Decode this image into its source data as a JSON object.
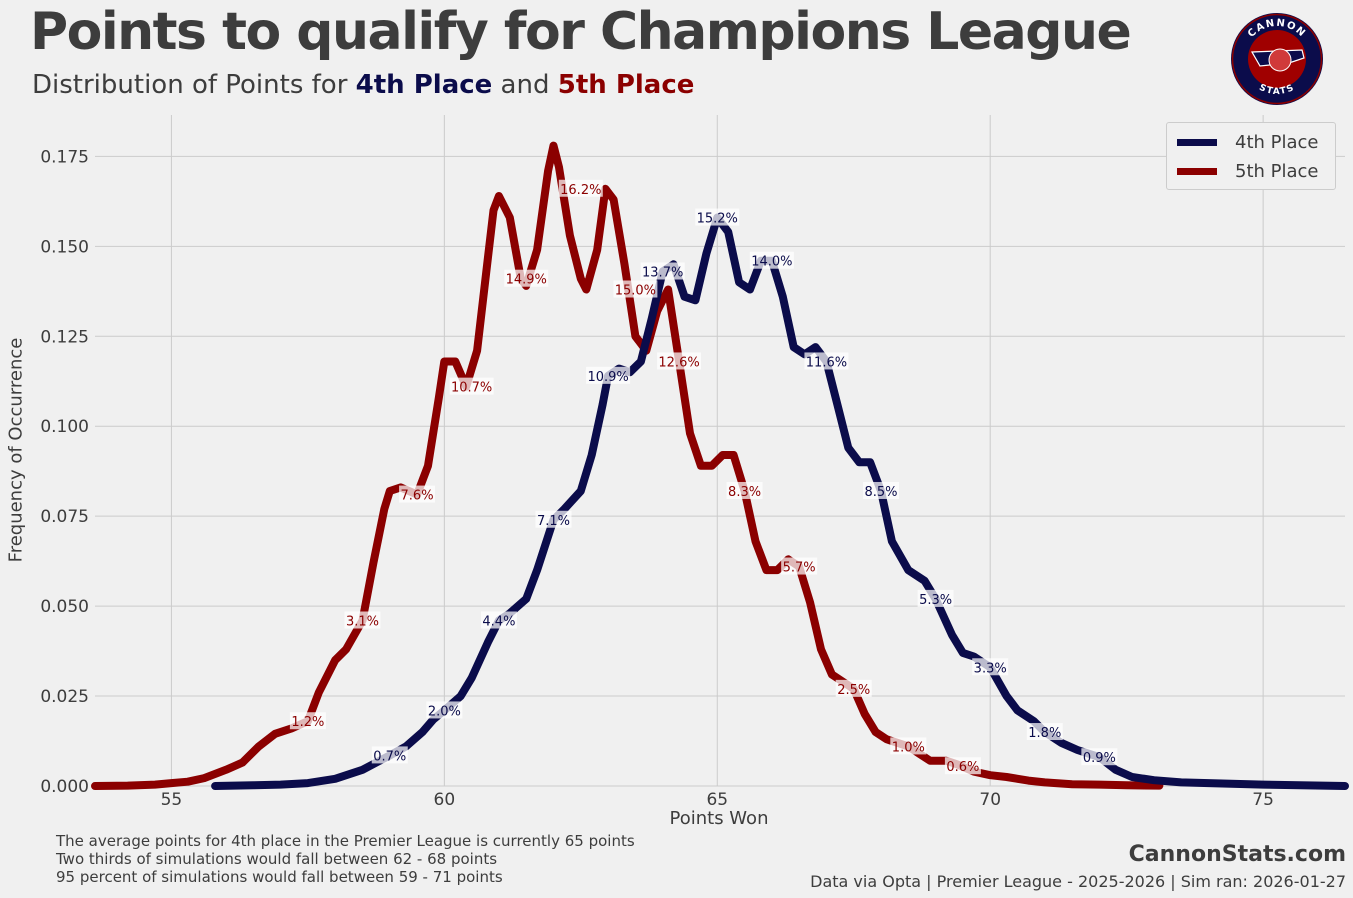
{
  "header": {
    "title": "Points to qualify for Champions League",
    "subtitle_prefix": "Distribution of Points for ",
    "subtitle_4th": "4th Place",
    "subtitle_and": " and ",
    "subtitle_5th": "5th Place"
  },
  "logo": {
    "top_text": "CANNON",
    "bottom_text": "STATS"
  },
  "colors": {
    "fourth": "#0b0c4b",
    "fifth": "#8b0000",
    "background": "#f0f0f0",
    "grid": "#cbcbcb",
    "text": "#3d3d3d"
  },
  "footer": {
    "notes": [
      "The average points for 4th place in the Premier League is currently 65 points",
      "Two thirds of simulations would fall between 62 - 68 points",
      "95 percent of simulations would fall between 59 - 71 points"
    ],
    "site": "CannonStats.com",
    "source": "Data via Opta | Premier League - 2025-2026 | Sim ran: 2026-01-27"
  },
  "chart_data": {
    "type": "line",
    "title": "Points to qualify for Champions League",
    "xlabel": "Points Won",
    "ylabel": "Frequency of Occurrence",
    "xlim": [
      53.6,
      76.5
    ],
    "ylim": [
      0,
      0.1865
    ],
    "xticks": [
      55,
      60,
      65,
      70,
      75
    ],
    "yticks": [
      0,
      0.025,
      0.05,
      0.075,
      0.1,
      0.125,
      0.15,
      0.175
    ],
    "ytick_labels": [
      "0.000",
      "0.025",
      "0.050",
      "0.075",
      "0.100",
      "0.125",
      "0.150",
      "0.175"
    ],
    "grid": true,
    "legend": {
      "position": "top-right",
      "entries": [
        "4th Place",
        "5th Place"
      ]
    },
    "series": [
      {
        "name": "4th Place",
        "color": "#0b0c4b",
        "x": [
          55.8,
          56.5,
          57.0,
          57.5,
          58.0,
          58.5,
          59.0,
          59.3,
          59.6,
          59.8,
          60.0,
          60.3,
          60.5,
          60.8,
          61.0,
          61.2,
          61.5,
          61.7,
          62.0,
          62.2,
          62.5,
          62.7,
          62.9,
          63.0,
          63.2,
          63.4,
          63.6,
          63.8,
          64.0,
          64.2,
          64.4,
          64.6,
          64.8,
          65.0,
          65.2,
          65.4,
          65.6,
          65.8,
          66.0,
          66.2,
          66.4,
          66.6,
          66.8,
          67.0,
          67.2,
          67.4,
          67.6,
          67.8,
          68.0,
          68.2,
          68.5,
          68.8,
          69.0,
          69.3,
          69.5,
          69.7,
          70.0,
          70.3,
          70.5,
          70.8,
          71.0,
          71.3,
          71.6,
          72.0,
          72.3,
          72.6,
          73.0,
          73.5,
          74.0,
          75.0,
          76.5
        ],
        "y": [
          0.0,
          0.0002,
          0.0004,
          0.0008,
          0.002,
          0.0045,
          0.0085,
          0.011,
          0.015,
          0.0185,
          0.021,
          0.025,
          0.03,
          0.04,
          0.046,
          0.048,
          0.052,
          0.06,
          0.074,
          0.077,
          0.082,
          0.092,
          0.106,
          0.114,
          0.116,
          0.115,
          0.118,
          0.13,
          0.143,
          0.145,
          0.136,
          0.135,
          0.148,
          0.158,
          0.154,
          0.14,
          0.138,
          0.146,
          0.146,
          0.136,
          0.122,
          0.12,
          0.122,
          0.118,
          0.106,
          0.094,
          0.09,
          0.09,
          0.082,
          0.068,
          0.06,
          0.057,
          0.052,
          0.042,
          0.037,
          0.036,
          0.033,
          0.025,
          0.021,
          0.018,
          0.015,
          0.012,
          0.01,
          0.008,
          0.0045,
          0.0025,
          0.0016,
          0.001,
          0.0008,
          0.0004,
          0.0
        ]
      },
      {
        "name": "5th Place",
        "color": "#8b0000",
        "x": [
          53.6,
          54.2,
          54.7,
          55.0,
          55.3,
          55.6,
          56.0,
          56.3,
          56.6,
          56.9,
          57.2,
          57.5,
          57.7,
          58.0,
          58.2,
          58.5,
          58.7,
          58.9,
          59.0,
          59.2,
          59.5,
          59.7,
          59.9,
          60.0,
          60.2,
          60.4,
          60.6,
          60.8,
          60.9,
          61.0,
          61.2,
          61.4,
          61.5,
          61.7,
          61.9,
          62.0,
          62.1,
          62.3,
          62.5,
          62.6,
          62.8,
          62.95,
          63.1,
          63.3,
          63.5,
          63.7,
          63.9,
          64.1,
          64.3,
          64.5,
          64.7,
          64.9,
          65.1,
          65.3,
          65.5,
          65.7,
          65.9,
          66.1,
          66.3,
          66.5,
          66.7,
          66.9,
          67.1,
          67.3,
          67.5,
          67.7,
          67.9,
          68.1,
          68.3,
          68.5,
          68.7,
          68.9,
          69.2,
          69.4,
          69.7,
          70.0,
          70.3,
          70.7,
          71.0,
          71.5,
          72.0,
          72.5,
          73.1
        ],
        "y": [
          0.0,
          0.0001,
          0.0004,
          0.0008,
          0.0012,
          0.0022,
          0.0045,
          0.0065,
          0.011,
          0.0145,
          0.016,
          0.018,
          0.026,
          0.035,
          0.038,
          0.046,
          0.062,
          0.077,
          0.082,
          0.083,
          0.081,
          0.089,
          0.108,
          0.118,
          0.118,
          0.111,
          0.121,
          0.147,
          0.16,
          0.164,
          0.158,
          0.141,
          0.139,
          0.149,
          0.171,
          0.178,
          0.172,
          0.153,
          0.141,
          0.138,
          0.149,
          0.166,
          0.163,
          0.145,
          0.125,
          0.121,
          0.132,
          0.138,
          0.118,
          0.098,
          0.089,
          0.089,
          0.092,
          0.092,
          0.082,
          0.068,
          0.06,
          0.06,
          0.063,
          0.061,
          0.051,
          0.038,
          0.031,
          0.029,
          0.027,
          0.02,
          0.015,
          0.013,
          0.012,
          0.011,
          0.009,
          0.007,
          0.007,
          0.006,
          0.004,
          0.003,
          0.0025,
          0.0015,
          0.001,
          0.0005,
          0.0004,
          0.0002,
          0.0001
        ]
      }
    ],
    "annotations": [
      {
        "series": "4th Place",
        "text": "0.7%",
        "x": 59.0,
        "y": 0.0085
      },
      {
        "series": "4th Place",
        "text": "2.0%",
        "x": 60.0,
        "y": 0.021
      },
      {
        "series": "4th Place",
        "text": "4.4%",
        "x": 61.0,
        "y": 0.046
      },
      {
        "series": "4th Place",
        "text": "7.1%",
        "x": 62.0,
        "y": 0.074
      },
      {
        "series": "4th Place",
        "text": "10.9%",
        "x": 63.0,
        "y": 0.114
      },
      {
        "series": "4th Place",
        "text": "13.7%",
        "x": 64.0,
        "y": 0.143
      },
      {
        "series": "4th Place",
        "text": "15.2%",
        "x": 65.0,
        "y": 0.158
      },
      {
        "series": "4th Place",
        "text": "14.0%",
        "x": 66.0,
        "y": 0.146
      },
      {
        "series": "4th Place",
        "text": "11.6%",
        "x": 67.0,
        "y": 0.118
      },
      {
        "series": "4th Place",
        "text": "8.5%",
        "x": 68.0,
        "y": 0.082
      },
      {
        "series": "4th Place",
        "text": "5.3%",
        "x": 69.0,
        "y": 0.052
      },
      {
        "series": "4th Place",
        "text": "3.3%",
        "x": 70.0,
        "y": 0.033
      },
      {
        "series": "4th Place",
        "text": "1.8%",
        "x": 71.0,
        "y": 0.015
      },
      {
        "series": "4th Place",
        "text": "0.9%",
        "x": 72.0,
        "y": 0.008
      },
      {
        "series": "5th Place",
        "text": "1.2%",
        "x": 57.5,
        "y": 0.018
      },
      {
        "series": "5th Place",
        "text": "3.1%",
        "x": 58.5,
        "y": 0.046
      },
      {
        "series": "5th Place",
        "text": "7.6%",
        "x": 59.5,
        "y": 0.081
      },
      {
        "series": "5th Place",
        "text": "10.7%",
        "x": 60.5,
        "y": 0.111
      },
      {
        "series": "5th Place",
        "text": "14.9%",
        "x": 61.5,
        "y": 0.141
      },
      {
        "series": "5th Place",
        "text": "16.2%",
        "x": 62.5,
        "y": 0.166
      },
      {
        "series": "5th Place",
        "text": "15.0%",
        "x": 63.5,
        "y": 0.138
      },
      {
        "series": "5th Place",
        "text": "12.6%",
        "x": 64.3,
        "y": 0.118
      },
      {
        "series": "5th Place",
        "text": "8.3%",
        "x": 65.5,
        "y": 0.082
      },
      {
        "series": "5th Place",
        "text": "5.7%",
        "x": 66.5,
        "y": 0.061
      },
      {
        "series": "5th Place",
        "text": "2.5%",
        "x": 67.5,
        "y": 0.027
      },
      {
        "series": "5th Place",
        "text": "1.0%",
        "x": 68.5,
        "y": 0.011
      },
      {
        "series": "5th Place",
        "text": "0.6%",
        "x": 69.5,
        "y": 0.0055
      }
    ]
  }
}
